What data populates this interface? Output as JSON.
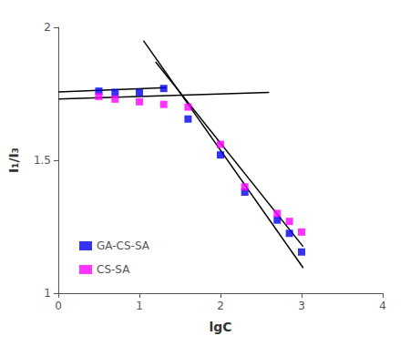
{
  "chart_data": {
    "type": "scatter",
    "xlabel": "lgC",
    "ylabel": "I₁/I₃",
    "xlim": [
      0,
      4
    ],
    "xticks": [
      0,
      1,
      2,
      3,
      4
    ],
    "ylim": [
      1,
      2
    ],
    "yticks": [
      1,
      1.5,
      2
    ],
    "grid": false,
    "legend": "lower left",
    "series": [
      {
        "name": "GA-CS-SA",
        "type": "scatter",
        "marker": "square",
        "color": "#0000EE",
        "x": [
          0.5,
          0.7,
          1.0,
          1.3,
          1.6,
          2.0,
          2.3,
          2.7,
          2.85,
          3.0
        ],
        "values": [
          1.76,
          1.755,
          1.755,
          1.77,
          1.655,
          1.52,
          1.38,
          1.275,
          1.225,
          1.155
        ]
      },
      {
        "name": "CS-SA",
        "type": "scatter",
        "marker": "square",
        "color": "#FF00FF",
        "x": [
          0.5,
          0.7,
          1.0,
          1.3,
          1.6,
          2.0,
          2.3,
          2.7,
          2.85,
          3.0
        ],
        "values": [
          1.74,
          1.73,
          1.72,
          1.71,
          1.7,
          1.56,
          1.4,
          1.3,
          1.27,
          1.23
        ]
      },
      {
        "type": "line",
        "line_style": "solid",
        "color": "#000000",
        "x": [
          0.0,
          1.33
        ],
        "values": [
          1.757,
          1.773
        ]
      },
      {
        "type": "line",
        "line_style": "solid",
        "color": "#000000",
        "x": [
          1.05,
          3.02
        ],
        "values": [
          1.95,
          1.095
        ]
      },
      {
        "type": "line",
        "line_style": "solid",
        "color": "#000000",
        "x": [
          0.0,
          2.6
        ],
        "values": [
          1.73,
          1.755
        ]
      },
      {
        "type": "line",
        "line_style": "solid",
        "color": "#000000",
        "x": [
          1.2,
          3.02
        ],
        "values": [
          1.87,
          1.175
        ]
      }
    ]
  }
}
